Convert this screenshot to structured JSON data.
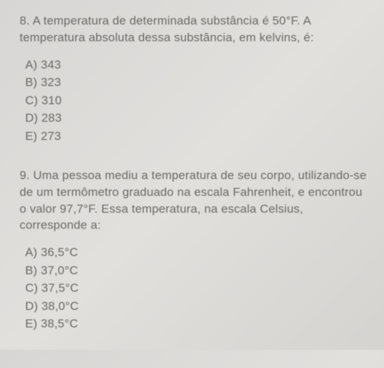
{
  "background_color": "#dcdad7",
  "text_color": "#6b6966",
  "font_size_body": 17,
  "q8": {
    "number": "8.",
    "text": "A temperatura de determinada substância é 50°F. A temperatura absoluta dessa substância, em kelvins, é:",
    "options": {
      "A": "343",
      "B": "323",
      "C": "310",
      "D": "283",
      "E": "273"
    }
  },
  "q9": {
    "number": "9.",
    "text": "Uma pessoa mediu a temperatura de seu corpo, utilizando-se de um termômetro graduado na escala Fahrenheit, e encontrou o valor 97,7°F. Essa temperatura, na escala Celsius, corresponde a:",
    "options": {
      "A": "36,5°C",
      "B": "37,0°C",
      "C": "37,5°C",
      "D": "38,0°C",
      "E": "38,5°C"
    }
  }
}
